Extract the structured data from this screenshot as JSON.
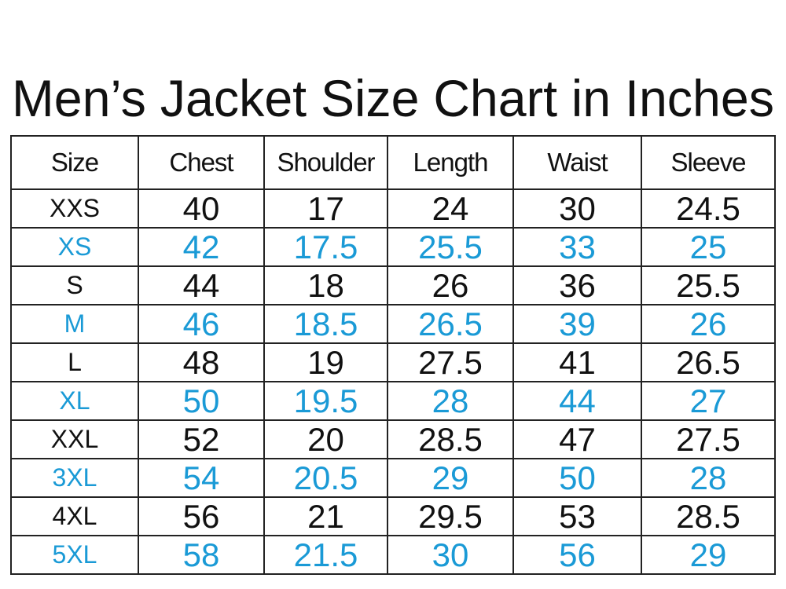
{
  "title": "Men’s Jacket Size Chart in Inches",
  "table": {
    "header": [
      "Size",
      "Chest",
      "Shoulder",
      "Length",
      "Waist",
      "Sleeve"
    ],
    "rows": [
      [
        "XXS",
        "40",
        "17",
        "24",
        "30",
        "24.5"
      ],
      [
        "XS",
        "42",
        "17.5",
        "25.5",
        "33",
        "25"
      ],
      [
        "S",
        "44",
        "18",
        "26",
        "36",
        "25.5"
      ],
      [
        "M",
        "46",
        "18.5",
        "26.5",
        "39",
        "26"
      ],
      [
        "L",
        "48",
        "19",
        "27.5",
        "41",
        "26.5"
      ],
      [
        "XL",
        "50",
        "19.5",
        "28",
        "44",
        "27"
      ],
      [
        "XXL",
        "52",
        "20",
        "28.5",
        "47",
        "27.5"
      ],
      [
        "3XL",
        "54",
        "20.5",
        "29",
        "50",
        "28"
      ],
      [
        "4XL",
        "56",
        "21",
        "29.5",
        "53",
        "28.5"
      ],
      [
        "5XL",
        "58",
        "21.5",
        "30",
        "56",
        "29"
      ]
    ]
  }
}
